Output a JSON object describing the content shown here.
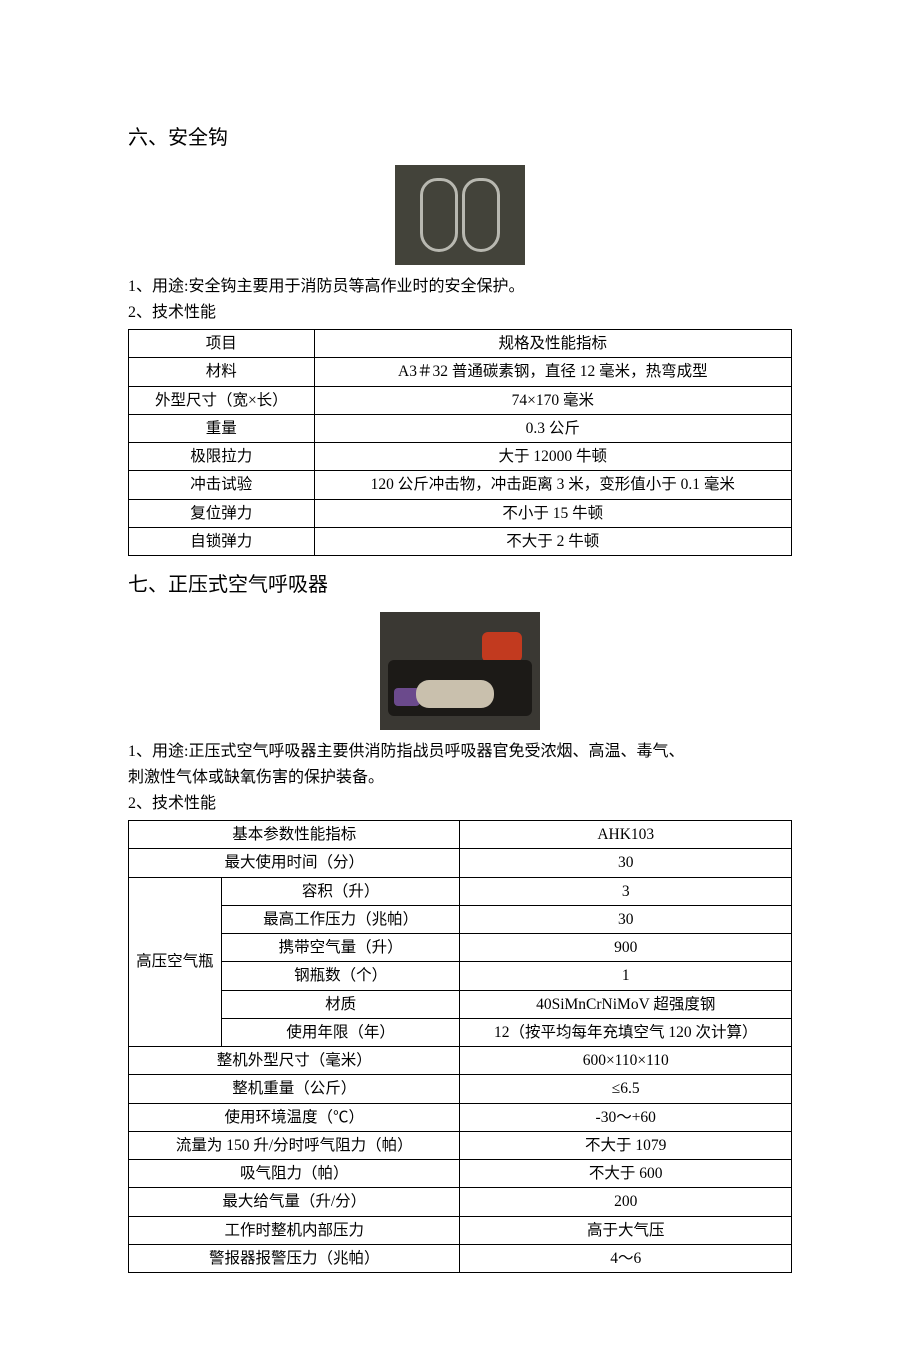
{
  "section6": {
    "heading": "六、安全钩",
    "usage": "1、用途:安全钩主要用于消防员等高作业时的安全保护。",
    "tech_label": "2、技术性能",
    "table": {
      "header": {
        "c1": "项目",
        "c2": "规格及性能指标"
      },
      "rows": [
        {
          "c1": "材料",
          "c2": "A3＃32 普通碳素钢，直径 12 毫米，热弯成型"
        },
        {
          "c1": "外型尺寸（宽×长）",
          "c2": "74×170 毫米"
        },
        {
          "c1": "重量",
          "c2": "0.3 公斤"
        },
        {
          "c1": "极限拉力",
          "c2": "大于 12000 牛顿"
        },
        {
          "c1": "冲击试验",
          "c2": "120 公斤冲击物，冲击距离 3 米，变形值小于 0.1 毫米"
        },
        {
          "c1": "复位弹力",
          "c2": "不小于 15 牛顿"
        },
        {
          "c1": "自锁弹力",
          "c2": "不大于 2 牛顿"
        }
      ]
    }
  },
  "section7": {
    "heading": "七、正压式空气呼吸器",
    "usage_line1": "1、用途:正压式空气呼吸器主要供消防指战员呼吸器官免受浓烟、高温、毒气、",
    "usage_line2": "刺激性气体或缺氧伤害的保护装备。",
    "tech_label": "2、技术性能",
    "table": {
      "r1": {
        "c1": "基本参数性能指标",
        "c2": "AHK103"
      },
      "r2": {
        "c1": "最大使用时间（分）",
        "c2": "30"
      },
      "merge_label": "高压空气瓶",
      "merged": [
        {
          "c1": "容积（升）",
          "c2": "3"
        },
        {
          "c1": "最高工作压力（兆帕）",
          "c2": "30"
        },
        {
          "c1": "携带空气量（升）",
          "c2": "900"
        },
        {
          "c1": "钢瓶数（个）",
          "c2": "1"
        },
        {
          "c1": "材质",
          "c2": "40SiMnCrNiMoV 超强度钢"
        },
        {
          "c1": "使用年限（年）",
          "c2": "12（按平均每年充填空气 120 次计算）"
        }
      ],
      "rest": [
        {
          "c1": "整机外型尺寸（毫米）",
          "c2": "600×110×110"
        },
        {
          "c1": "整机重量（公斤）",
          "c2": "≤6.5"
        },
        {
          "c1": "使用环境温度（℃）",
          "c2": "-30～+60"
        },
        {
          "c1": "流量为 150 升/分时呼气阻力（帕）",
          "c2": "不大于 1079"
        },
        {
          "c1": "吸气阻力（帕）",
          "c2": "不大于 600"
        },
        {
          "c1": "最大给气量（升/分）",
          "c2": "200"
        },
        {
          "c1": "工作时整机内部压力",
          "c2": "高于大气压"
        },
        {
          "c1": "警报器报警压力（兆帕）",
          "c2": "4～6"
        }
      ]
    }
  }
}
